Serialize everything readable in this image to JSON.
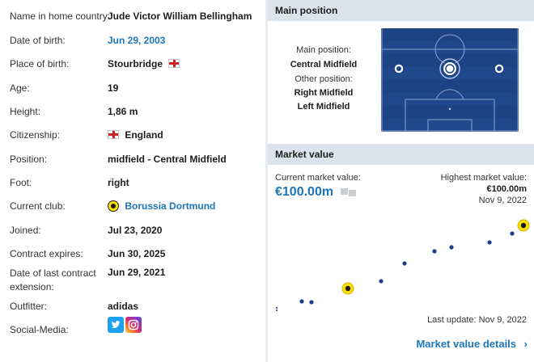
{
  "profile": {
    "rows": [
      {
        "label": "Name in home country:",
        "value": "Jude Victor William Bellingham"
      },
      {
        "label": "Date of birth:",
        "value": "Jun 29, 2003"
      },
      {
        "label": "Place of birth:",
        "value": "Stourbridge"
      },
      {
        "label": "Age:",
        "value": "19"
      },
      {
        "label": "Height:",
        "value": "1,86 m"
      },
      {
        "label": "Citizenship:",
        "value": "England"
      },
      {
        "label": "Position:",
        "value": "midfield - Central Midfield"
      },
      {
        "label": "Foot:",
        "value": "right"
      },
      {
        "label": "Current club:",
        "value": "Borussia Dortmund"
      },
      {
        "label": "Joined:",
        "value": "Jul 23, 2020"
      },
      {
        "label": "Contract expires:",
        "value": "Jun 30, 2025"
      },
      {
        "label_line1": "Date of last contract",
        "label_line2": "extension:",
        "value": "Jun 29, 2021"
      },
      {
        "label": "Outfitter:",
        "value": "adidas"
      },
      {
        "label": "Social-Media:"
      }
    ]
  },
  "main_position": {
    "header": "Main position",
    "main_label": "Main position:",
    "main_value": "Central Midfield",
    "other_label": "Other position:",
    "other_values": [
      "Right Midfield",
      "Left Midfield"
    ]
  },
  "market_value": {
    "header": "Market value",
    "current_label": "Current market value:",
    "current_value": "€100.00m",
    "highest_label": "Highest market value:",
    "highest_value": "€100.00m",
    "highest_date": "Nov 9, 2022",
    "last_update": "Last update: Nov 9, 2022",
    "details_link": "Market value details",
    "details_arrow": "›"
  },
  "icons": {
    "flag": "england-flag-icon",
    "club": "borussia-dortmund-crest-icon",
    "twitter": "twitter-icon",
    "instagram": "instagram-icon"
  },
  "colors": {
    "link_blue": "#1a75bb",
    "header_bg": "#dde3ea",
    "pitch_blue": "#1d4385",
    "dot_blue": "#1d3f8a",
    "club_yellow": "#fde100"
  }
}
